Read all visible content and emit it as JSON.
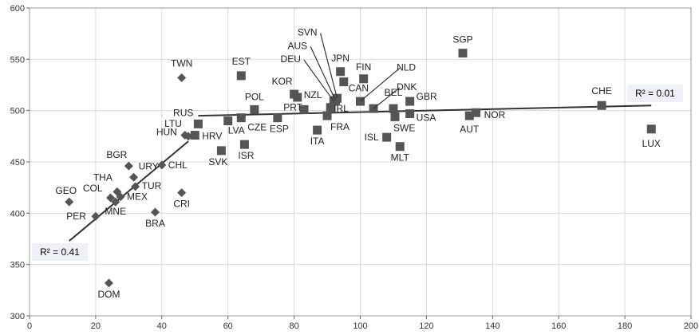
{
  "chart_data": {
    "type": "scatter",
    "title": "",
    "xlabel": "",
    "ylabel": "",
    "xlim": [
      0,
      200
    ],
    "ylim": [
      300,
      600
    ],
    "xticks": [
      0,
      20,
      40,
      60,
      80,
      100,
      120,
      140,
      160,
      180,
      200
    ],
    "yticks": [
      300,
      350,
      400,
      450,
      500,
      550,
      600
    ],
    "grid": true,
    "colors": {
      "marker": "#555555",
      "line": "#333333",
      "grid": "#d9d9d9",
      "r2_box": "#eef1f7"
    },
    "series": [
      {
        "marker": "diamond",
        "points": [
          {
            "label": "GEO",
            "x": 12,
            "y": 411
          },
          {
            "label": "PER",
            "x": 20,
            "y": 397
          },
          {
            "label": "DOM",
            "x": 24,
            "y": 332
          },
          {
            "label": "COL",
            "x": 24.5,
            "y": 415
          },
          {
            "label": "THA",
            "x": 26.5,
            "y": 421
          },
          {
            "label": "MNE",
            "x": 26,
            "y": 411
          },
          {
            "label": "MEX",
            "x": 27.5,
            "y": 416
          },
          {
            "label": "BGR",
            "x": 30,
            "y": 446
          },
          {
            "label": "URY",
            "x": 31.5,
            "y": 435
          },
          {
            "label": "TUR",
            "x": 32,
            "y": 426
          },
          {
            "label": "BRA",
            "x": 38,
            "y": 401
          },
          {
            "label": "CHL",
            "x": 40,
            "y": 447
          },
          {
            "label": "CRI",
            "x": 46,
            "y": 420
          },
          {
            "label": "TWN",
            "x": 46,
            "y": 532
          },
          {
            "label": "HUN",
            "x": 47,
            "y": 476
          },
          {
            "label": "LTU",
            "x": 48,
            "y": 475
          }
        ]
      },
      {
        "marker": "square",
        "points": [
          {
            "label": "HRV",
            "x": 50,
            "y": 476
          },
          {
            "label": "RUS",
            "x": 51,
            "y": 487
          },
          {
            "label": "SVK",
            "x": 58,
            "y": 461
          },
          {
            "label": "LVA",
            "x": 60,
            "y": 490
          },
          {
            "label": "CZE",
            "x": 64,
            "y": 493
          },
          {
            "label": "EST",
            "x": 64,
            "y": 534
          },
          {
            "label": "ISR",
            "x": 65,
            "y": 467
          },
          {
            "label": "POL",
            "x": 68,
            "y": 501
          },
          {
            "label": "ESP",
            "x": 75,
            "y": 493
          },
          {
            "label": "KOR",
            "x": 80,
            "y": 516
          },
          {
            "label": "NZL",
            "x": 81,
            "y": 513
          },
          {
            "label": "PRT",
            "x": 83,
            "y": 501
          },
          {
            "label": "ITA",
            "x": 87,
            "y": 481
          },
          {
            "label": "FRA",
            "x": 90,
            "y": 495
          },
          {
            "label": "IRL",
            "x": 91,
            "y": 503
          },
          {
            "label": "DEU",
            "x": 92,
            "y": 509
          },
          {
            "label": "AUS",
            "x": 92.5,
            "y": 510
          },
          {
            "label": "SVN",
            "x": 93,
            "y": 512
          },
          {
            "label": "JPN",
            "x": 94,
            "y": 538
          },
          {
            "label": "CAN",
            "x": 95,
            "y": 528
          },
          {
            "label": "NLD",
            "x": 100,
            "y": 509
          },
          {
            "label": "FIN",
            "x": 101,
            "y": 531
          },
          {
            "label": "DNK",
            "x": 104,
            "y": 502
          },
          {
            "label": "ISL",
            "x": 108,
            "y": 474
          },
          {
            "label": "BEL",
            "x": 110,
            "y": 502
          },
          {
            "label": "SWE",
            "x": 110.5,
            "y": 494
          },
          {
            "label": "MLT",
            "x": 112,
            "y": 465
          },
          {
            "label": "GBR",
            "x": 115,
            "y": 509
          },
          {
            "label": "USA",
            "x": 115,
            "y": 497
          },
          {
            "label": "SGP",
            "x": 131,
            "y": 556
          },
          {
            "label": "AUT",
            "x": 133,
            "y": 495
          },
          {
            "label": "NOR",
            "x": 135,
            "y": 498
          },
          {
            "label": "CHE",
            "x": 173,
            "y": 505
          },
          {
            "label": "LUX",
            "x": 188,
            "y": 482
          }
        ]
      }
    ],
    "trendlines": [
      {
        "x": [
          12,
          48
        ],
        "y": [
          373,
          470
        ],
        "label": "R² = 0.41"
      },
      {
        "x": [
          51,
          188
        ],
        "y": [
          495,
          505
        ],
        "label": "R² = 0.01"
      }
    ]
  }
}
